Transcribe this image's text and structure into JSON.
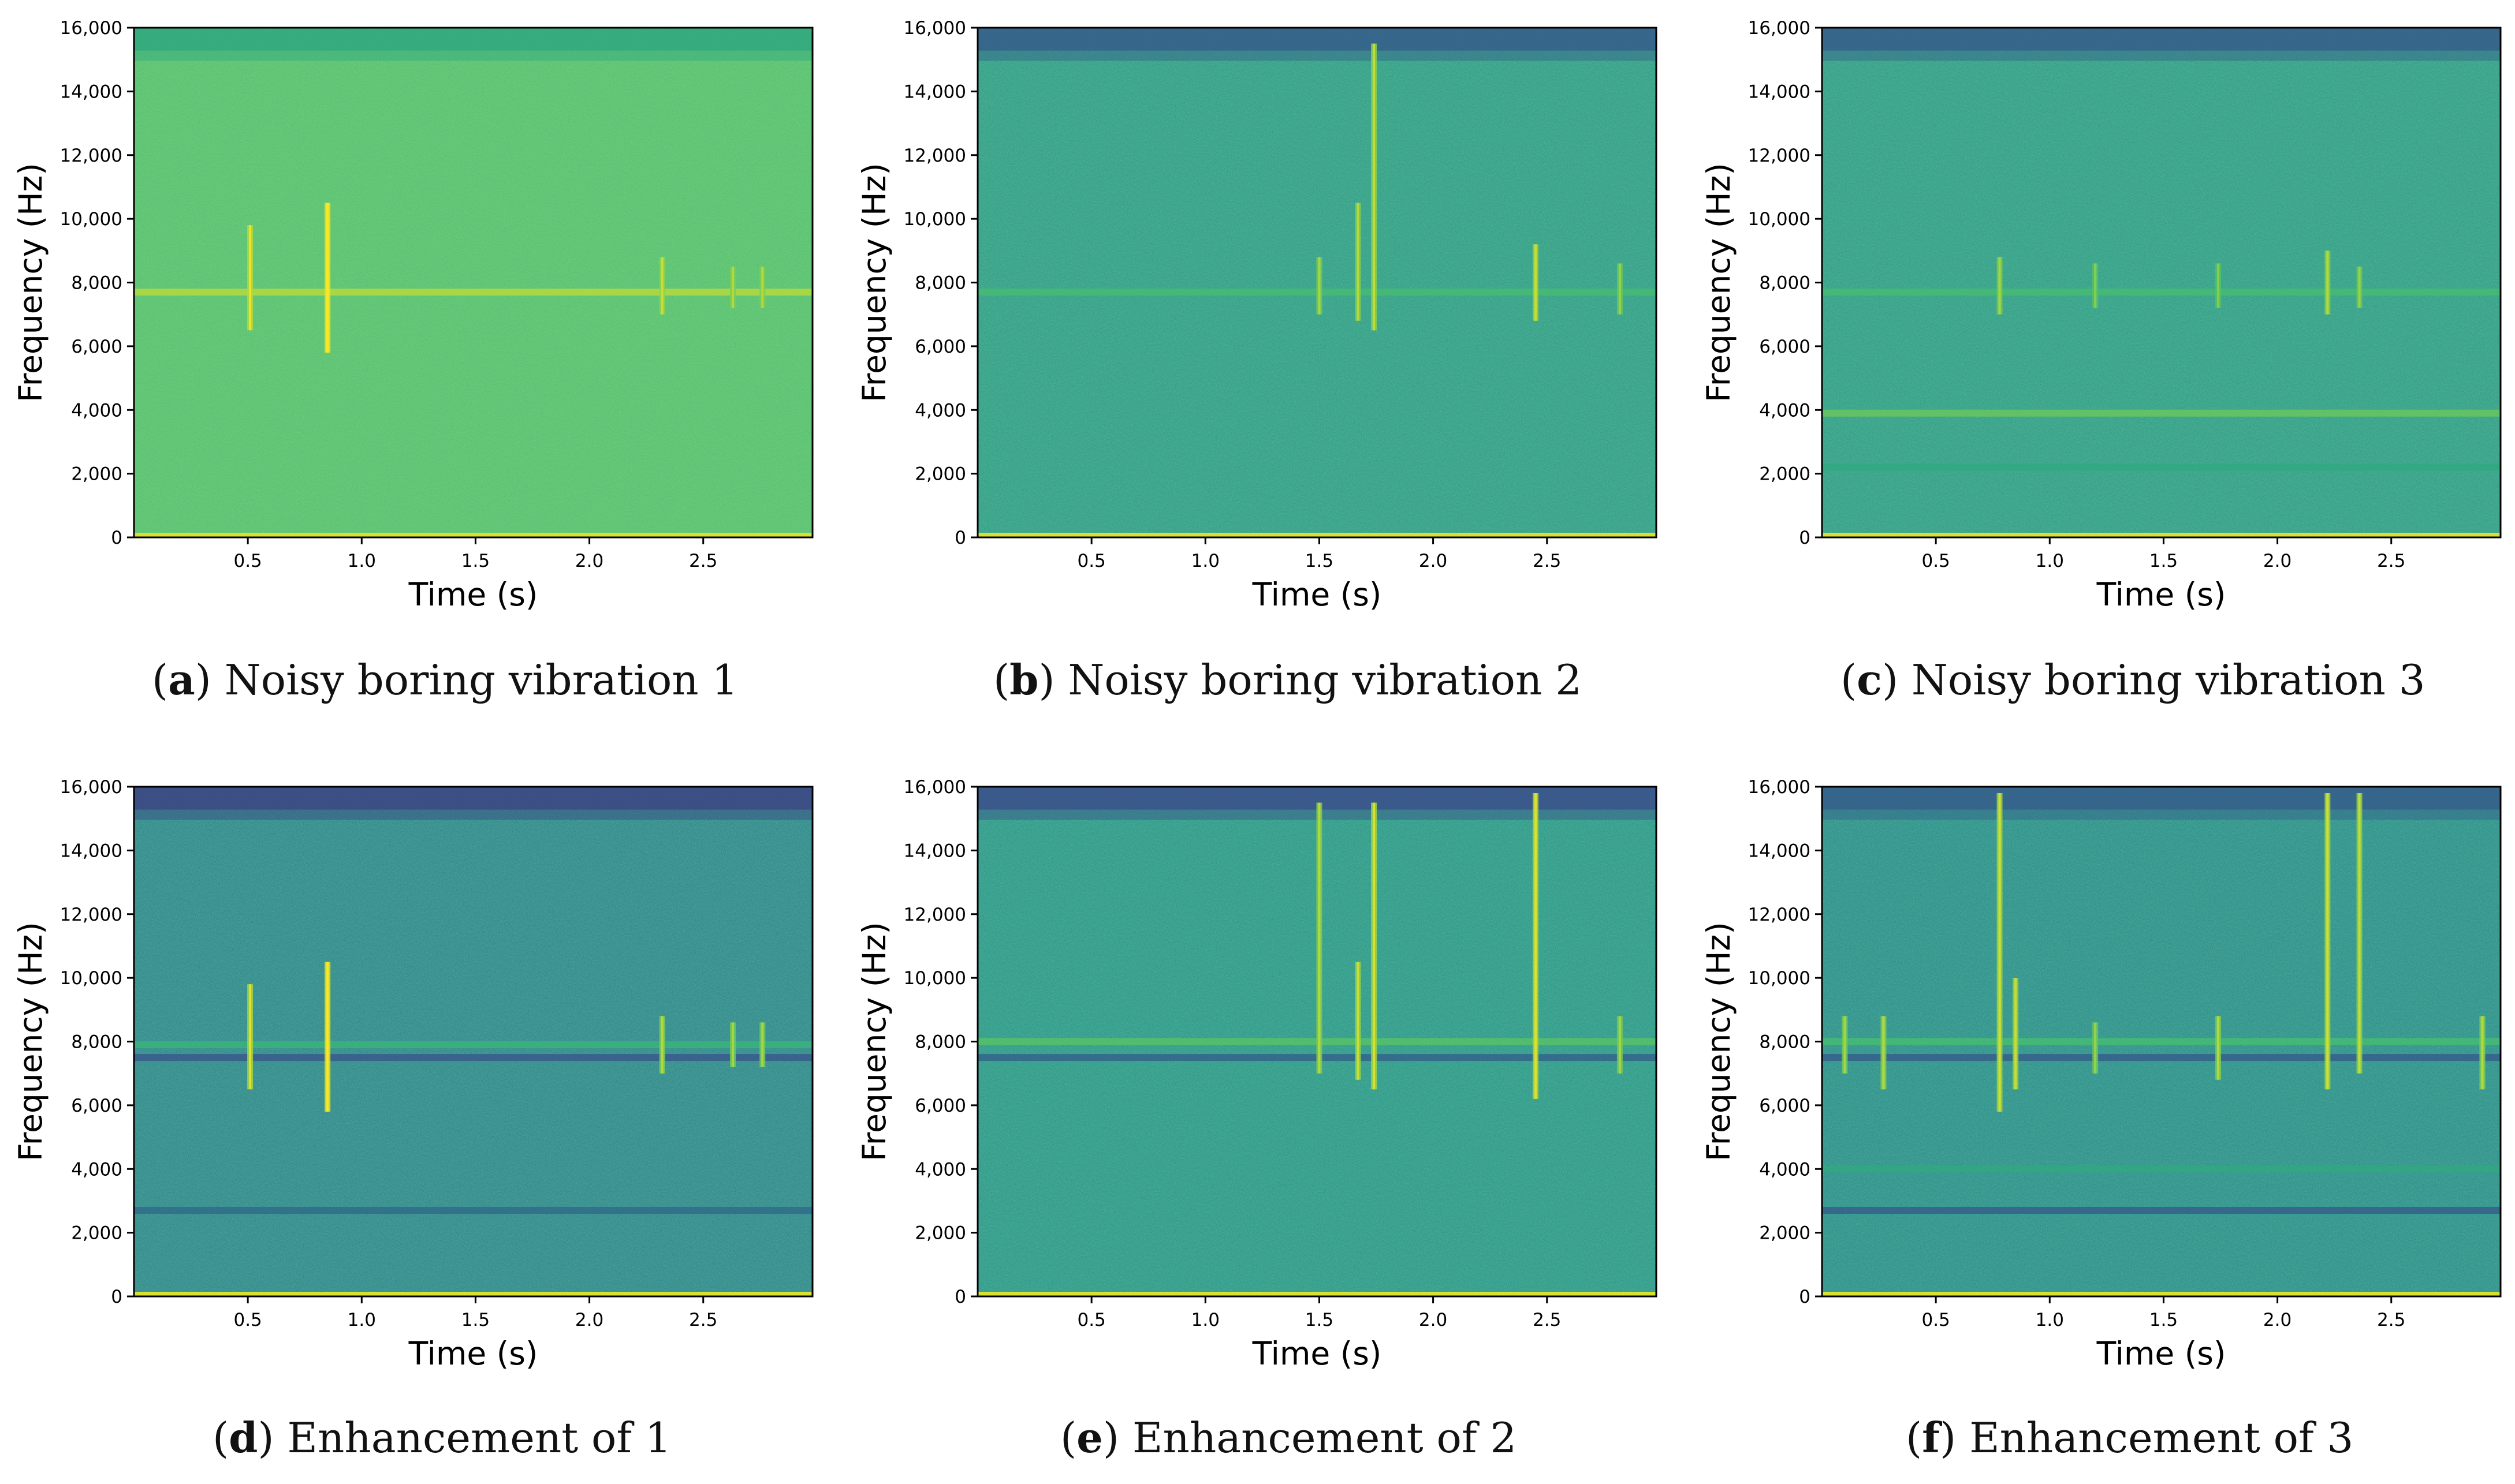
{
  "figure": {
    "panels": [
      {
        "id": "a",
        "letter": "a",
        "caption": "Noisy boring vibration 1"
      },
      {
        "id": "b",
        "letter": "b",
        "caption": "Noisy boring vibration 2"
      },
      {
        "id": "c",
        "letter": "c",
        "caption": "Noisy boring vibration 3"
      },
      {
        "id": "d",
        "letter": "d",
        "caption": "Enhancement of 1"
      },
      {
        "id": "e",
        "letter": "e",
        "caption": "Enhancement of 2"
      },
      {
        "id": "f",
        "letter": "f",
        "caption": "Enhancement of 3"
      }
    ]
  },
  "colors": {
    "dark": "#3b4f8a",
    "mid": "#2c8f8a",
    "green": "#3bb878",
    "light": "#8fd24a",
    "bright": "#e6e51a"
  },
  "chart_data": [
    {
      "panel": "a",
      "type": "heatmap",
      "title": "",
      "xlabel": "Time (s)",
      "ylabel": "Frequency (Hz)",
      "xlim": [
        0,
        2.98
      ],
      "ylim": [
        0,
        16000
      ],
      "x_ticks": [
        0.5,
        1.0,
        1.5,
        2.0,
        2.5
      ],
      "x_tick_labels": [
        "0.5",
        "1.0",
        "1.5",
        "2.0",
        "2.5"
      ],
      "y_ticks": [
        0,
        2000,
        4000,
        6000,
        8000,
        10000,
        12000,
        14000,
        16000
      ],
      "y_tick_labels": [
        "0",
        "2,000",
        "4,000",
        "6,000",
        "8,000",
        "10,000",
        "12,000",
        "14,000",
        "16,000"
      ],
      "colormap": "viridis",
      "background_level": 0.74,
      "top_band_level": 0.62,
      "bottom_line_level": 0.95,
      "bands": [
        {
          "freq": 7700,
          "level": 0.9
        }
      ],
      "transients": [
        {
          "t": 0.51,
          "f_low": 6500,
          "f_high": 9800,
          "level": 0.9
        },
        {
          "t": 0.85,
          "f_low": 5800,
          "f_high": 10500,
          "level": 0.97
        },
        {
          "t": 2.32,
          "f_low": 7000,
          "f_high": 8800,
          "level": 0.85
        },
        {
          "t": 2.63,
          "f_low": 7200,
          "f_high": 8500,
          "level": 0.82
        },
        {
          "t": 2.76,
          "f_low": 7200,
          "f_high": 8500,
          "level": 0.82
        }
      ]
    },
    {
      "panel": "b",
      "type": "heatmap",
      "title": "",
      "xlabel": "Time (s)",
      "ylabel": "Frequency (Hz)",
      "xlim": [
        0,
        2.98
      ],
      "ylim": [
        0,
        16000
      ],
      "x_ticks": [
        0.5,
        1.0,
        1.5,
        2.0,
        2.5
      ],
      "x_tick_labels": [
        "0.5",
        "1.0",
        "1.5",
        "2.0",
        "2.5"
      ],
      "y_ticks": [
        0,
        2000,
        4000,
        6000,
        8000,
        10000,
        12000,
        14000,
        16000
      ],
      "y_tick_labels": [
        "0",
        "2,000",
        "4,000",
        "6,000",
        "8,000",
        "10,000",
        "12,000",
        "14,000",
        "16,000"
      ],
      "colormap": "viridis",
      "background_level": 0.55,
      "top_band_level": 0.3,
      "bottom_line_level": 0.95,
      "bands": [
        {
          "freq": 7700,
          "level": 0.72
        }
      ],
      "transients": [
        {
          "t": 1.5,
          "f_low": 7000,
          "f_high": 8800,
          "level": 0.8
        },
        {
          "t": 1.67,
          "f_low": 6800,
          "f_high": 10500,
          "level": 0.82
        },
        {
          "t": 1.74,
          "f_low": 6500,
          "f_high": 15500,
          "level": 0.84
        },
        {
          "t": 2.45,
          "f_low": 6800,
          "f_high": 9200,
          "level": 0.85
        },
        {
          "t": 2.82,
          "f_low": 7000,
          "f_high": 8600,
          "level": 0.78
        }
      ]
    },
    {
      "panel": "c",
      "type": "heatmap",
      "title": "",
      "xlabel": "Time (s)",
      "ylabel": "Frequency (Hz)",
      "xlim": [
        0,
        2.98
      ],
      "ylim": [
        0,
        16000
      ],
      "x_ticks": [
        0.5,
        1.0,
        1.5,
        2.0,
        2.5
      ],
      "x_tick_labels": [
        "0.5",
        "1.0",
        "1.5",
        "2.0",
        "2.5"
      ],
      "y_ticks": [
        0,
        2000,
        4000,
        6000,
        8000,
        10000,
        12000,
        14000,
        16000
      ],
      "y_tick_labels": [
        "0",
        "2,000",
        "4,000",
        "6,000",
        "8,000",
        "10,000",
        "12,000",
        "14,000",
        "16,000"
      ],
      "colormap": "viridis",
      "background_level": 0.55,
      "top_band_level": 0.3,
      "bottom_line_level": 0.95,
      "bands": [
        {
          "freq": 7700,
          "level": 0.72
        },
        {
          "freq": 3900,
          "level": 0.78
        },
        {
          "freq": 2200,
          "level": 0.62
        }
      ],
      "transients": [
        {
          "t": 0.78,
          "f_low": 7000,
          "f_high": 8800,
          "level": 0.8
        },
        {
          "t": 1.2,
          "f_low": 7200,
          "f_high": 8600,
          "level": 0.75
        },
        {
          "t": 1.74,
          "f_low": 7200,
          "f_high": 8600,
          "level": 0.75
        },
        {
          "t": 2.22,
          "f_low": 7000,
          "f_high": 9000,
          "level": 0.82
        },
        {
          "t": 2.36,
          "f_low": 7200,
          "f_high": 8500,
          "level": 0.78
        }
      ]
    },
    {
      "panel": "d",
      "type": "heatmap",
      "title": "",
      "xlabel": "Time (s)",
      "ylabel": "Frequency (Hz)",
      "xlim": [
        0,
        2.98
      ],
      "ylim": [
        0,
        16000
      ],
      "x_ticks": [
        0.5,
        1.0,
        1.5,
        2.0,
        2.5
      ],
      "x_tick_labels": [
        "0.5",
        "1.0",
        "1.5",
        "2.0",
        "2.5"
      ],
      "y_ticks": [
        0,
        2000,
        4000,
        6000,
        8000,
        10000,
        12000,
        14000,
        16000
      ],
      "y_tick_labels": [
        "0",
        "2,000",
        "4,000",
        "6,000",
        "8,000",
        "10,000",
        "12,000",
        "14,000",
        "16,000"
      ],
      "colormap": "viridis",
      "background_level": 0.45,
      "top_band_level": 0.22,
      "bottom_line_level": 0.95,
      "bands": [
        {
          "freq": 7900,
          "level": 0.68
        },
        {
          "freq": 7500,
          "level": 0.28
        },
        {
          "freq": 2700,
          "level": 0.35
        }
      ],
      "transients": [
        {
          "t": 0.51,
          "f_low": 6500,
          "f_high": 9800,
          "level": 0.88
        },
        {
          "t": 0.85,
          "f_low": 5800,
          "f_high": 10500,
          "level": 0.95
        },
        {
          "t": 2.32,
          "f_low": 7000,
          "f_high": 8800,
          "level": 0.82
        },
        {
          "t": 2.63,
          "f_low": 7200,
          "f_high": 8600,
          "level": 0.8
        },
        {
          "t": 2.76,
          "f_low": 7200,
          "f_high": 8600,
          "level": 0.8
        }
      ]
    },
    {
      "panel": "e",
      "type": "heatmap",
      "title": "",
      "xlabel": "Time (s)",
      "ylabel": "Frequency (Hz)",
      "xlim": [
        0,
        2.98
      ],
      "ylim": [
        0,
        16000
      ],
      "x_ticks": [
        0.5,
        1.0,
        1.5,
        2.0,
        2.5
      ],
      "x_tick_labels": [
        "0.5",
        "1.0",
        "1.5",
        "2.0",
        "2.5"
      ],
      "y_ticks": [
        0,
        2000,
        4000,
        6000,
        8000,
        10000,
        12000,
        14000,
        16000
      ],
      "y_tick_labels": [
        "0",
        "2,000",
        "4,000",
        "6,000",
        "8,000",
        "10,000",
        "12,000",
        "14,000",
        "16,000"
      ],
      "colormap": "viridis",
      "background_level": 0.52,
      "top_band_level": 0.25,
      "bottom_line_level": 0.95,
      "bands": [
        {
          "freq": 8000,
          "level": 0.75
        },
        {
          "freq": 7500,
          "level": 0.32
        }
      ],
      "transients": [
        {
          "t": 1.5,
          "f_low": 7000,
          "f_high": 15500,
          "level": 0.82
        },
        {
          "t": 1.67,
          "f_low": 6800,
          "f_high": 10500,
          "level": 0.85
        },
        {
          "t": 1.74,
          "f_low": 6500,
          "f_high": 15500,
          "level": 0.87
        },
        {
          "t": 2.45,
          "f_low": 6200,
          "f_high": 15800,
          "level": 0.88
        },
        {
          "t": 2.82,
          "f_low": 7000,
          "f_high": 8800,
          "level": 0.8
        }
      ]
    },
    {
      "panel": "f",
      "type": "heatmap",
      "title": "",
      "xlabel": "Time (s)",
      "ylabel": "Frequency (Hz)",
      "xlim": [
        0,
        2.98
      ],
      "ylim": [
        0,
        16000
      ],
      "x_ticks": [
        0.5,
        1.0,
        1.5,
        2.0,
        2.5
      ],
      "x_tick_labels": [
        "0.5",
        "1.0",
        "1.5",
        "2.0",
        "2.5"
      ],
      "y_ticks": [
        0,
        2000,
        4000,
        6000,
        8000,
        10000,
        12000,
        14000,
        16000
      ],
      "y_tick_labels": [
        "0",
        "2,000",
        "4,000",
        "6,000",
        "8,000",
        "10,000",
        "12,000",
        "14,000",
        "16,000"
      ],
      "colormap": "viridis",
      "background_level": 0.48,
      "top_band_level": 0.3,
      "bottom_line_level": 0.95,
      "bands": [
        {
          "freq": 8000,
          "level": 0.72
        },
        {
          "freq": 7500,
          "level": 0.3
        },
        {
          "freq": 4000,
          "level": 0.62
        },
        {
          "freq": 2700,
          "level": 0.3
        }
      ],
      "transients": [
        {
          "t": 0.1,
          "f_low": 7000,
          "f_high": 8800,
          "level": 0.8
        },
        {
          "t": 0.27,
          "f_low": 6500,
          "f_high": 8800,
          "level": 0.82
        },
        {
          "t": 0.78,
          "f_low": 5800,
          "f_high": 15800,
          "level": 0.86
        },
        {
          "t": 0.85,
          "f_low": 6500,
          "f_high": 10000,
          "level": 0.85
        },
        {
          "t": 1.2,
          "f_low": 7000,
          "f_high": 8600,
          "level": 0.78
        },
        {
          "t": 1.74,
          "f_low": 6800,
          "f_high": 8800,
          "level": 0.82
        },
        {
          "t": 2.22,
          "f_low": 6500,
          "f_high": 15800,
          "level": 0.86
        },
        {
          "t": 2.36,
          "f_low": 7000,
          "f_high": 15800,
          "level": 0.84
        },
        {
          "t": 2.9,
          "f_low": 6500,
          "f_high": 8800,
          "level": 0.82
        }
      ]
    }
  ]
}
